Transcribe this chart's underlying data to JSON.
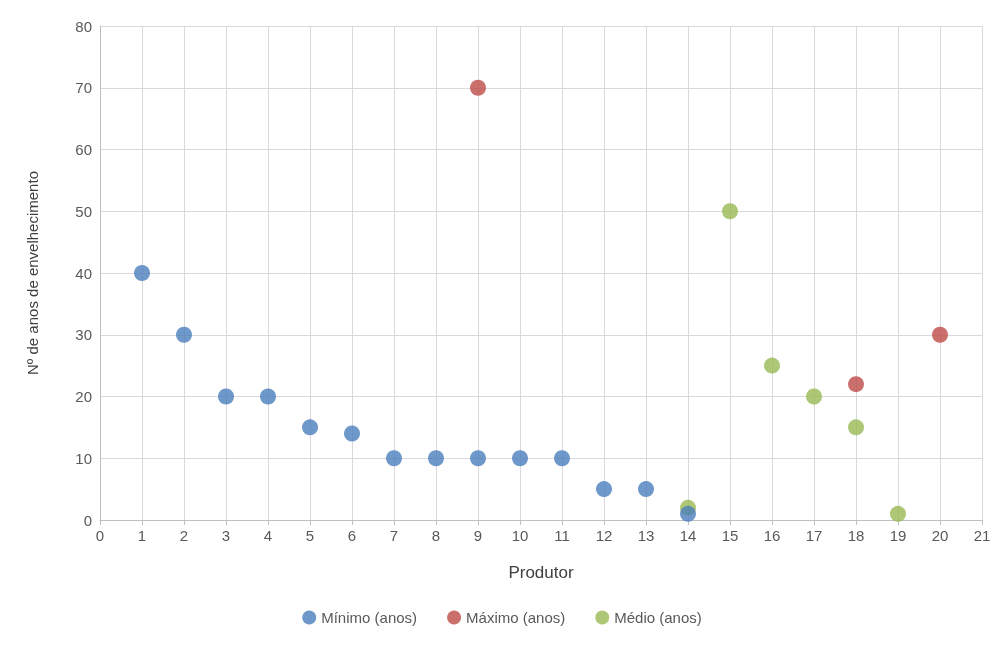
{
  "chart_data": {
    "type": "scatter",
    "xlabel": "Produtor",
    "ylabel": "Nº de anos de envelhecimento",
    "xlim": [
      0,
      21
    ],
    "xticks": [
      0,
      1,
      2,
      3,
      4,
      5,
      6,
      7,
      8,
      9,
      10,
      11,
      12,
      13,
      14,
      15,
      16,
      17,
      18,
      19,
      20,
      21
    ],
    "ylim": [
      0,
      80
    ],
    "yticks": [
      0,
      10,
      20,
      30,
      40,
      50,
      60,
      70,
      80
    ],
    "grid": true,
    "legend": "bottom",
    "marker": "circle",
    "series": [
      {
        "name": "Mínimo (anos)",
        "color": "#4a7ebb",
        "x": [
          1,
          2,
          3,
          4,
          5,
          6,
          7,
          8,
          9,
          10,
          11,
          12,
          13,
          14
        ],
        "values": [
          40,
          30,
          20,
          20,
          15,
          14,
          10,
          10,
          10,
          10,
          10,
          5,
          5,
          1
        ]
      },
      {
        "name": "Máximo (anos)",
        "color": "#be4b48",
        "x": [
          9,
          18,
          20
        ],
        "values": [
          70,
          22,
          30
        ]
      },
      {
        "name": "Médio (anos)",
        "color": "#98b954",
        "x": [
          14,
          15,
          16,
          17,
          18,
          19
        ],
        "values": [
          2,
          50,
          25,
          20,
          15,
          1
        ]
      }
    ]
  }
}
